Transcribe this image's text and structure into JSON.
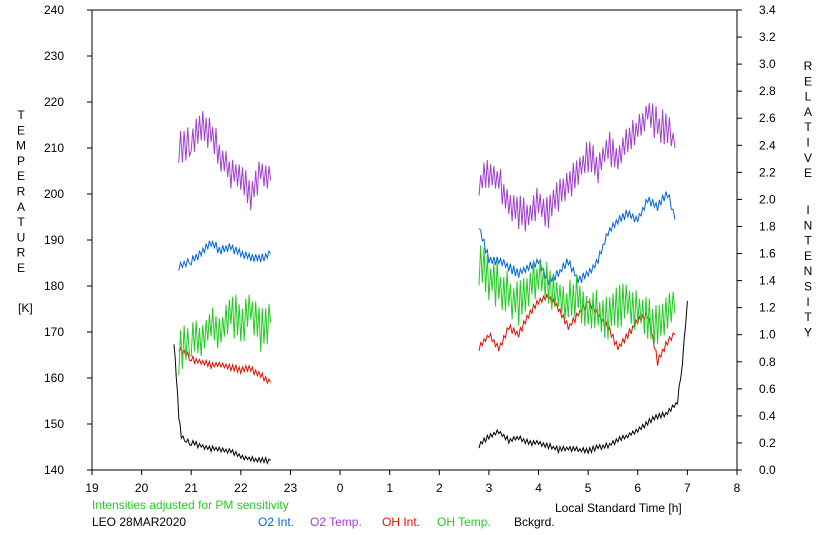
{
  "chart_data": {
    "type": "line",
    "left_axis": {
      "label_letters": [
        "T",
        "E",
        "M",
        "P",
        "E",
        "R",
        "A",
        "T",
        "U",
        "R",
        "E"
      ],
      "unit": "[K]",
      "ylim": [
        140,
        240
      ],
      "ticks": [
        "140",
        "150",
        "160",
        "170",
        "180",
        "190",
        "200",
        "210",
        "220",
        "230",
        "240"
      ]
    },
    "right_axis": {
      "label_word1": [
        "R",
        "E",
        "L",
        "A",
        "T",
        "I",
        "V",
        "E"
      ],
      "label_word2": [
        "I",
        "N",
        "T",
        "E",
        "N",
        "S",
        "I",
        "T",
        "Y"
      ],
      "ylim": [
        0.0,
        3.4
      ],
      "ticks": [
        "0.0",
        "0.2",
        "0.4",
        "0.6",
        "0.8",
        "1.0",
        "1.2",
        "1.4",
        "1.6",
        "1.8",
        "2.0",
        "2.2",
        "2.4",
        "2.6",
        "2.8",
        "3.0",
        "3.2",
        "3.4"
      ]
    },
    "x_axis": {
      "label": "Local Standard Time [h]",
      "ticks": [
        "19",
        "20",
        "21",
        "22",
        "23",
        "0",
        "1",
        "2",
        "3",
        "4",
        "5",
        "6",
        "7",
        "8"
      ]
    },
    "note": "Intensities adjusted for PM sensitivity",
    "station": "LEO 28MAR2020",
    "colors": {
      "o2_int": "#0066dd",
      "o2_temp": "#a040d0",
      "oh_int": "#dd1100",
      "oh_temp": "#22cc22",
      "bckgrd": "#000000",
      "note": "#22cc22"
    },
    "series": [
      {
        "name": "O2 Int.",
        "axis": "right",
        "segments": [
          {
            "x": [
              20.75,
              21.0,
              21.2,
              21.4,
              21.6,
              21.8,
              22.0,
              22.2,
              22.4,
              22.6
            ],
            "y": [
              1.5,
              1.55,
              1.6,
              1.68,
              1.62,
              1.65,
              1.6,
              1.58,
              1.56,
              1.6
            ]
          },
          {
            "x": [
              2.8,
              3.0,
              3.2,
              3.4,
              3.6,
              3.8,
              4.0,
              4.2,
              4.4,
              4.6,
              4.8,
              5.0,
              5.2,
              5.4,
              5.6,
              5.8,
              6.0,
              6.2,
              6.4,
              6.6,
              6.75
            ],
            "y": [
              1.8,
              1.55,
              1.55,
              1.5,
              1.45,
              1.5,
              1.55,
              1.4,
              1.45,
              1.55,
              1.4,
              1.45,
              1.55,
              1.75,
              1.85,
              1.9,
              1.85,
              2.0,
              1.95,
              2.05,
              1.85
            ]
          }
        ]
      },
      {
        "name": "O2 Temp.",
        "axis": "left",
        "segments": [
          {
            "x": [
              20.75,
              21.0,
              21.2,
              21.4,
              21.6,
              21.8,
              22.0,
              22.2,
              22.4,
              22.6
            ],
            "y": [
              210,
              212,
              215,
              213,
              208,
              205,
              203,
              200,
              205,
              203
            ]
          },
          {
            "x": [
              2.8,
              3.0,
              3.2,
              3.4,
              3.6,
              3.8,
              4.0,
              4.2,
              4.4,
              4.6,
              4.8,
              5.0,
              5.2,
              5.4,
              5.6,
              5.8,
              6.0,
              6.2,
              6.4,
              6.6,
              6.75
            ],
            "y": [
              202,
              205,
              203,
              198,
              196,
              195,
              198,
              196,
              200,
              202,
              205,
              208,
              206,
              210,
              208,
              212,
              214,
              218,
              215,
              214,
              210
            ]
          }
        ]
      },
      {
        "name": "OH Int.",
        "axis": "right",
        "segments": [
          {
            "x": [
              20.75,
              21.0,
              21.2,
              21.4,
              21.6,
              21.8,
              22.0,
              22.2,
              22.4,
              22.6
            ],
            "y": [
              0.9,
              0.82,
              0.8,
              0.78,
              0.78,
              0.76,
              0.74,
              0.75,
              0.7,
              0.65
            ]
          },
          {
            "x": [
              2.8,
              3.0,
              3.2,
              3.4,
              3.6,
              3.8,
              4.0,
              4.2,
              4.4,
              4.6,
              4.8,
              5.0,
              5.2,
              5.4,
              5.6,
              5.8,
              6.0,
              6.2,
              6.4,
              6.6,
              6.75
            ],
            "y": [
              0.9,
              1.0,
              0.9,
              1.05,
              1.0,
              1.15,
              1.25,
              1.28,
              1.2,
              1.05,
              1.15,
              1.25,
              1.15,
              1.05,
              0.9,
              1.0,
              1.1,
              1.15,
              0.8,
              0.95,
              1.0
            ]
          }
        ]
      },
      {
        "name": "OH Temp.",
        "axis": "left",
        "segments": [
          {
            "x": [
              20.75,
              21.0,
              21.2,
              21.4,
              21.6,
              21.8,
              22.0,
              22.2,
              22.4,
              22.6
            ],
            "y": [
              165,
              170,
              168,
              172,
              170,
              174,
              172,
              175,
              170,
              172
            ]
          },
          {
            "x": [
              2.8,
              3.0,
              3.2,
              3.4,
              3.6,
              3.8,
              4.0,
              4.2,
              4.4,
              4.6,
              4.8,
              5.0,
              5.2,
              5.4,
              5.6,
              5.8,
              6.0,
              6.2,
              6.4,
              6.6,
              6.75
            ],
            "y": [
              185,
              182,
              180,
              178,
              176,
              180,
              182,
              180,
              178,
              176,
              178,
              175,
              174,
              173,
              175,
              176,
              175,
              173,
              172,
              175,
              174
            ]
          }
        ]
      },
      {
        "name": "Bckgrd.",
        "axis": "right",
        "segments": [
          {
            "x": [
              20.65,
              20.7,
              20.75,
              20.8,
              20.9,
              21.0,
              21.2,
              21.4,
              21.6,
              21.8,
              22.0,
              22.2,
              22.4,
              22.6
            ],
            "y": [
              0.95,
              0.7,
              0.4,
              0.25,
              0.22,
              0.2,
              0.18,
              0.16,
              0.15,
              0.14,
              0.1,
              0.08,
              0.07,
              0.07
            ]
          },
          {
            "x": [
              2.8,
              3.0,
              3.2,
              3.4,
              3.6,
              3.8,
              4.0,
              4.2,
              4.4,
              4.6,
              4.8,
              5.0,
              5.2,
              5.4,
              5.6,
              5.8,
              6.0,
              6.2,
              6.4,
              6.6,
              6.8,
              6.9,
              7.0
            ],
            "y": [
              0.18,
              0.25,
              0.28,
              0.22,
              0.24,
              0.2,
              0.2,
              0.18,
              0.15,
              0.16,
              0.15,
              0.14,
              0.17,
              0.18,
              0.22,
              0.25,
              0.3,
              0.35,
              0.4,
              0.42,
              0.5,
              0.8,
              1.25
            ]
          }
        ]
      }
    ],
    "legend": [
      {
        "label": "O2 Int.",
        "color": "#0066dd"
      },
      {
        "label": "O2 Temp.",
        "color": "#a040d0"
      },
      {
        "label": "OH Int.",
        "color": "#dd1100"
      },
      {
        "label": "OH Temp.",
        "color": "#22cc22"
      },
      {
        "label": "Bckgrd.",
        "color": "#000000"
      }
    ]
  }
}
